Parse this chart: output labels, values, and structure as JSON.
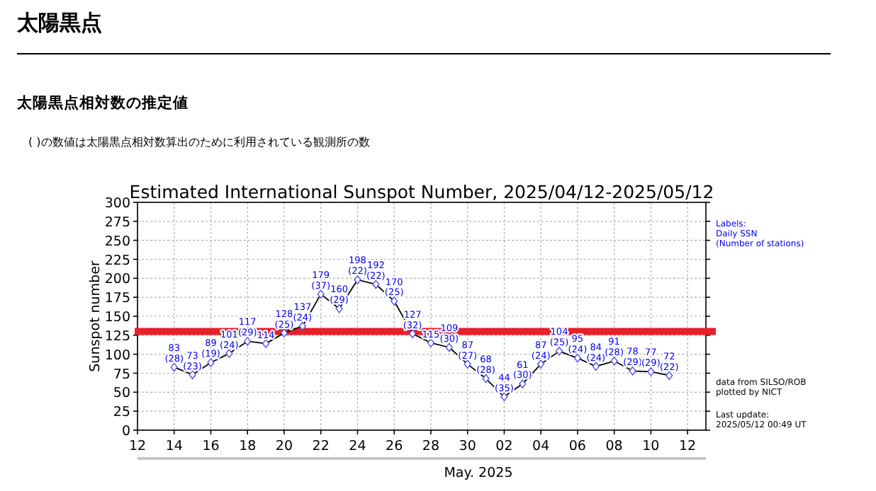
{
  "chart_data": {
    "type": "line",
    "title": "Estimated International Sunspot Number, 2025/04/12-2025/05/12",
    "xlabel": "May. 2025",
    "ylabel": "Sunspot number",
    "x": [
      "2025-04-14",
      "2025-04-15",
      "2025-04-16",
      "2025-04-17",
      "2025-04-18",
      "2025-04-19",
      "2025-04-20",
      "2025-04-21",
      "2025-04-22",
      "2025-04-23",
      "2025-04-24",
      "2025-04-25",
      "2025-04-26",
      "2025-04-27",
      "2025-04-28",
      "2025-04-29",
      "2025-04-30",
      "2025-05-01",
      "2025-05-02",
      "2025-05-03",
      "2025-05-04",
      "2025-05-05",
      "2025-05-06",
      "2025-05-07",
      "2025-05-08",
      "2025-05-09",
      "2025-05-10",
      "2025-05-11"
    ],
    "series": [
      {
        "color": "#000000",
        "values": [
          83,
          73,
          89,
          101,
          117,
          114,
          128,
          137,
          179,
          160,
          198,
          192,
          170,
          127,
          115,
          109,
          87,
          68,
          44,
          61,
          87,
          104,
          95,
          84,
          91,
          78,
          77,
          72
        ],
        "value_labels": [
          "83\n(28)",
          "73\n(23)",
          "89\n(19)",
          "101\n(24)",
          "117\n(29)",
          "114",
          "128\n(25)",
          "137\n(24)",
          "179\n(37)",
          "160\n(29)",
          "198\n(22)",
          "192\n(22)",
          "170\n(25)",
          "127\n(32)",
          "115",
          "109\n(30)",
          "87\n(27)",
          "68\n(28)",
          "44\n(35)",
          "61\n(30)",
          "87\n(24)",
          "104\n(25)",
          "95\n(24)",
          "84\n(24)",
          "91\n(28)",
          "78\n(29)",
          "77\n(29)",
          "72\n(22)"
        ]
      }
    ],
    "xlim": [
      "2025-04-12",
      "2025-05-13"
    ],
    "xticks": [
      {
        "value": "2025-04-12",
        "label": "12"
      },
      {
        "value": "2025-04-14",
        "label": "14"
      },
      {
        "value": "2025-04-16",
        "label": "16"
      },
      {
        "value": "2025-04-18",
        "label": "18"
      },
      {
        "value": "2025-04-20",
        "label": "20"
      },
      {
        "value": "2025-04-22",
        "label": "22"
      },
      {
        "value": "2025-04-24",
        "label": "24"
      },
      {
        "value": "2025-04-26",
        "label": "26"
      },
      {
        "value": "2025-04-28",
        "label": "28"
      },
      {
        "value": "2025-04-30",
        "label": "30"
      },
      {
        "value": "2025-05-02",
        "label": "02"
      },
      {
        "value": "2025-05-04",
        "label": "04"
      },
      {
        "value": "2025-05-06",
        "label": "06"
      },
      {
        "value": "2025-05-08",
        "label": "08"
      },
      {
        "value": "2025-05-10",
        "label": "10"
      },
      {
        "value": "2025-05-12",
        "label": "12"
      }
    ],
    "ylim": [
      0,
      300
    ],
    "yticks": [
      0,
      25,
      50,
      75,
      100,
      125,
      150,
      175,
      200,
      225,
      250,
      275,
      300
    ],
    "grid": true,
    "marker": "diamond",
    "line_style": "solid",
    "ref_lines": [
      {
        "axis": "y",
        "value": 130,
        "color": "#e8202a"
      }
    ],
    "annotations": [
      "太陽黒点",
      "太陽黒点相対数の推定値",
      "( )の数値は太陽黒点相対数算出のために利用されている観測所の数",
      "Labels:\nDaily SSN\n(Number of stations)",
      "data from SILSO/ROB\nplotted by NICT",
      "Last update:\n2025/05/12 00:49 UT"
    ]
  }
}
